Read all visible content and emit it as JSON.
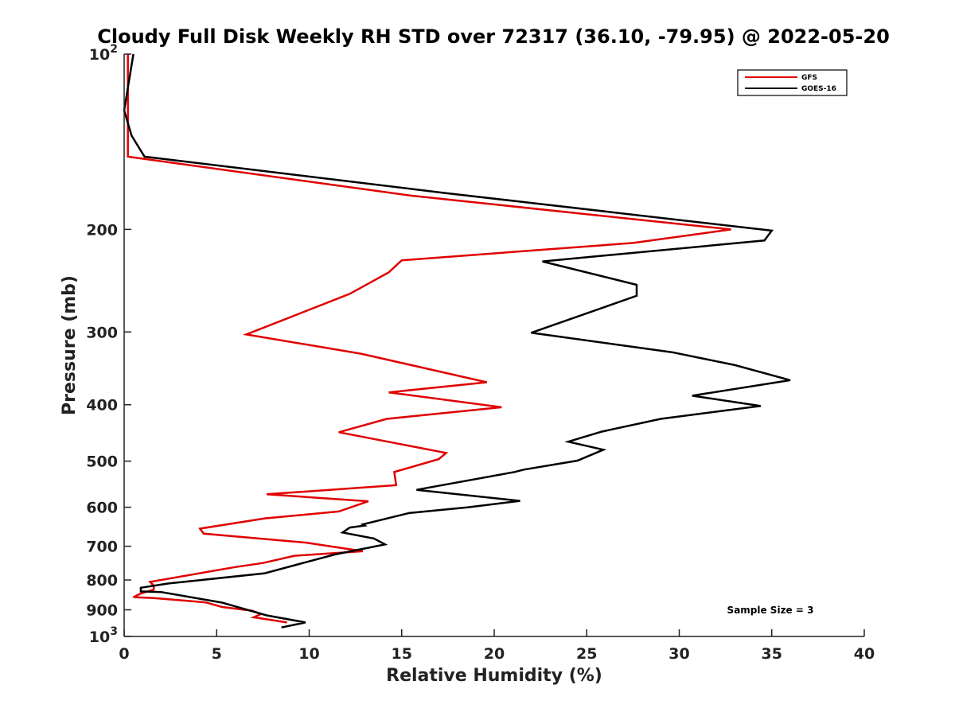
{
  "chart_data": {
    "type": "line",
    "title": "Cloudy Full Disk Weekly RH STD over 72317 (36.10, -79.95) @ 2022-05-20",
    "xlabel": "Relative Humidity (%)",
    "ylabel": "Pressure (mb)",
    "xlim": [
      0,
      40
    ],
    "ylim": [
      100,
      1000
    ],
    "y_scale": "log",
    "y_reversed": true,
    "grid": false,
    "legend_position": "top-right",
    "x_ticks": [
      "0",
      "5",
      "10",
      "15",
      "20",
      "25",
      "30",
      "35",
      "40"
    ],
    "x_tick_values": [
      0,
      5,
      10,
      15,
      20,
      25,
      30,
      35,
      40
    ],
    "y_ticks": [
      {
        "value": 100,
        "base": "10",
        "exp": "2"
      },
      {
        "value": 200,
        "base": "200",
        "exp": ""
      },
      {
        "value": 300,
        "base": "300",
        "exp": ""
      },
      {
        "value": 400,
        "base": "400",
        "exp": ""
      },
      {
        "value": 500,
        "base": "500",
        "exp": ""
      },
      {
        "value": 600,
        "base": "600",
        "exp": ""
      },
      {
        "value": 700,
        "base": "700",
        "exp": ""
      },
      {
        "value": 800,
        "base": "800",
        "exp": ""
      },
      {
        "value": 900,
        "base": "900",
        "exp": ""
      },
      {
        "value": 1000,
        "base": "10",
        "exp": "3"
      }
    ],
    "annotation": "Sample Size = 3",
    "series": [
      {
        "name": "GFS",
        "color": "#e00000",
        "points": [
          [
            0.2,
            100
          ],
          [
            0.2,
            125
          ],
          [
            0.2,
            150
          ],
          [
            15.5,
            175
          ],
          [
            32.8,
            200
          ],
          [
            27.5,
            211
          ],
          [
            15.0,
            226
          ],
          [
            14.3,
            237
          ],
          [
            12.2,
            258
          ],
          [
            6.6,
            303
          ],
          [
            12.8,
            327
          ],
          [
            19.6,
            366
          ],
          [
            14.3,
            381
          ],
          [
            20.4,
            404
          ],
          [
            14.2,
            423
          ],
          [
            11.6,
            446
          ],
          [
            17.4,
            484
          ],
          [
            17.0,
            496
          ],
          [
            14.6,
            522
          ],
          [
            14.7,
            550
          ],
          [
            7.7,
            570
          ],
          [
            13.2,
            586
          ],
          [
            11.6,
            610
          ],
          [
            7.6,
            627
          ],
          [
            4.1,
            653
          ],
          [
            4.3,
            666
          ],
          [
            9.8,
            690
          ],
          [
            12.9,
            714
          ],
          [
            9.2,
            727
          ],
          [
            7.5,
            748
          ],
          [
            6.0,
            760
          ],
          [
            1.4,
            806
          ],
          [
            1.6,
            818
          ],
          [
            1.6,
            831
          ],
          [
            0.9,
            844
          ],
          [
            0.5,
            856
          ],
          [
            1.6,
            859
          ],
          [
            4.4,
            874
          ],
          [
            5.3,
            890
          ],
          [
            6.9,
            903
          ],
          [
            7.4,
            915
          ],
          [
            7.0,
            927
          ],
          [
            8.8,
            946
          ]
        ]
      },
      {
        "name": "GOES-16",
        "color": "#000000",
        "points": [
          [
            0.5,
            100
          ],
          [
            0.0,
            125
          ],
          [
            0.4,
            138
          ],
          [
            1.1,
            150
          ],
          [
            17.2,
            173
          ],
          [
            35.0,
            201
          ],
          [
            34.6,
            209
          ],
          [
            22.6,
            227
          ],
          [
            27.7,
            249
          ],
          [
            27.7,
            260
          ],
          [
            22.0,
            301
          ],
          [
            29.6,
            325
          ],
          [
            33.0,
            342
          ],
          [
            36.0,
            363
          ],
          [
            30.7,
            386
          ],
          [
            34.4,
            402
          ],
          [
            29.0,
            423
          ],
          [
            25.8,
            445
          ],
          [
            24.0,
            463
          ],
          [
            25.9,
            478
          ],
          [
            24.5,
            499
          ],
          [
            21.6,
            517
          ],
          [
            21.1,
            522
          ],
          [
            15.8,
            560
          ],
          [
            21.4,
            585
          ],
          [
            18.6,
            600
          ],
          [
            15.4,
            614
          ],
          [
            12.9,
            642
          ],
          [
            13.0,
            645
          ],
          [
            12.2,
            650
          ],
          [
            11.8,
            663
          ],
          [
            13.5,
            679
          ],
          [
            14.1,
            695
          ],
          [
            11.4,
            723
          ],
          [
            9.8,
            746
          ],
          [
            7.6,
            779
          ],
          [
            2.4,
            811
          ],
          [
            0.9,
            825
          ],
          [
            0.9,
            837
          ],
          [
            2.0,
            839
          ],
          [
            5.3,
            875
          ],
          [
            7.7,
            920
          ],
          [
            9.8,
            946
          ],
          [
            8.5,
            965
          ]
        ]
      }
    ]
  }
}
